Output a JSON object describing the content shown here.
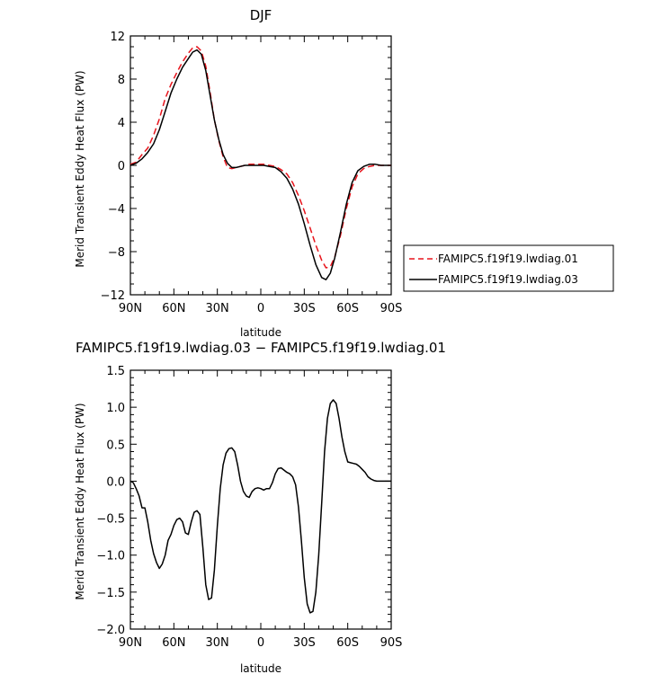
{
  "chart_data": [
    {
      "type": "line",
      "title": "DJF",
      "xlabel": "latitude",
      "ylabel": "Merid Transient Eddy Heat Flux (PW)",
      "xlim": [
        90,
        -90
      ],
      "ylim": [
        -12,
        12
      ],
      "xticks": [
        90,
        60,
        30,
        0,
        -30,
        -60,
        -90
      ],
      "xtick_labels": [
        "90N",
        "60N",
        "30N",
        "0",
        "30S",
        "60S",
        "90S"
      ],
      "yticks": [
        12,
        8,
        4,
        0,
        -4,
        -8,
        -12
      ],
      "ytick_labels": [
        "12",
        "8",
        "4",
        "0",
        "−4",
        "−8",
        "−12"
      ],
      "legend": "right",
      "series": [
        {
          "name": "FAMIPC5.f19f19.lwdiag.01",
          "color": "#e8141c",
          "dash": "dashed",
          "x": [
            90,
            86,
            82,
            78,
            74,
            70,
            66,
            62,
            58,
            54,
            50,
            47,
            44,
            41,
            38,
            35,
            32,
            29,
            26,
            23,
            20,
            17,
            14,
            11,
            8,
            5,
            2,
            -2,
            -6,
            -10,
            -14,
            -18,
            -22,
            -26,
            -30,
            -34,
            -38,
            -42,
            -45,
            -48,
            -51,
            -55,
            -59,
            -63,
            -67,
            -71,
            -75,
            -79,
            -83,
            -87,
            -90
          ],
          "y": [
            0.1,
            0.3,
            1.0,
            1.6,
            2.8,
            4.3,
            6.2,
            7.5,
            8.6,
            9.6,
            10.4,
            10.9,
            11.0,
            10.6,
            9.2,
            6.8,
            4.2,
            2.3,
            0.8,
            -0.2,
            -0.3,
            -0.2,
            -0.1,
            0.0,
            0.1,
            0.1,
            0.1,
            0.1,
            0.0,
            -0.1,
            -0.4,
            -0.8,
            -1.6,
            -2.8,
            -4.2,
            -5.8,
            -7.4,
            -8.8,
            -9.5,
            -9.4,
            -8.5,
            -6.5,
            -4.0,
            -2.0,
            -0.8,
            -0.3,
            -0.1,
            0.0,
            0.0,
            0.0,
            0.0
          ]
        },
        {
          "name": "FAMIPC5.f19f19.lwdiag.03",
          "color": "#000000",
          "dash": "solid",
          "x": [
            90,
            86,
            82,
            78,
            74,
            70,
            66,
            62,
            58,
            54,
            50,
            47,
            44,
            41,
            38,
            35,
            32,
            29,
            26,
            23,
            20,
            17,
            14,
            11,
            8,
            5,
            2,
            -2,
            -6,
            -10,
            -14,
            -18,
            -22,
            -26,
            -30,
            -34,
            -38,
            -42,
            -45,
            -48,
            -51,
            -55,
            -59,
            -63,
            -67,
            -71,
            -75,
            -79,
            -83,
            -87,
            -90
          ],
          "y": [
            0.0,
            0.2,
            0.6,
            1.2,
            2.0,
            3.3,
            5.0,
            6.7,
            8.0,
            9.1,
            9.9,
            10.5,
            10.7,
            10.3,
            8.8,
            6.5,
            4.2,
            2.4,
            1.0,
            0.2,
            -0.2,
            -0.2,
            -0.1,
            0.0,
            0.0,
            0.0,
            0.0,
            0.0,
            -0.1,
            -0.2,
            -0.6,
            -1.2,
            -2.2,
            -3.6,
            -5.4,
            -7.4,
            -9.2,
            -10.4,
            -10.6,
            -10.0,
            -8.6,
            -6.2,
            -3.6,
            -1.6,
            -0.5,
            -0.1,
            0.1,
            0.1,
            0.0,
            0.0,
            0.0
          ]
        }
      ]
    },
    {
      "type": "line",
      "title": "FAMIPC5.f19f19.lwdiag.03 − FAMIPC5.f19f19.lwdiag.01",
      "xlabel": "latitude",
      "ylabel": "Merid Transient Eddy Heat Flux (PW)",
      "xlim": [
        90,
        -90
      ],
      "ylim": [
        -2.0,
        1.5
      ],
      "xticks": [
        90,
        60,
        30,
        0,
        -30,
        -60,
        -90
      ],
      "xtick_labels": [
        "90N",
        "60N",
        "30N",
        "0",
        "30S",
        "60S",
        "90S"
      ],
      "yticks": [
        1.5,
        1.0,
        0.5,
        0.0,
        -0.5,
        -1.0,
        -1.5,
        -2.0
      ],
      "ytick_labels": [
        "1.5",
        "1.0",
        "0.5",
        "0.0",
        "−0.5",
        "−1.0",
        "−1.5",
        "−2.0"
      ],
      "series": [
        {
          "color": "#000000",
          "dash": "solid",
          "x": [
            90,
            88,
            86,
            84,
            82,
            80,
            78,
            76,
            74,
            72,
            70,
            68,
            66,
            64,
            62,
            60,
            58,
            56,
            54,
            52,
            50,
            48,
            46,
            44,
            42,
            40,
            38,
            36,
            34,
            32,
            30,
            28,
            26,
            24,
            22,
            20,
            18,
            16,
            14,
            12,
            10,
            8,
            6,
            4,
            2,
            0,
            -2,
            -4,
            -6,
            -8,
            -10,
            -12,
            -14,
            -16,
            -18,
            -20,
            -22,
            -24,
            -26,
            -28,
            -30,
            -32,
            -34,
            -36,
            -38,
            -40,
            -42,
            -44,
            -46,
            -48,
            -50,
            -52,
            -54,
            -56,
            -58,
            -60,
            -62,
            -64,
            -66,
            -68,
            -70,
            -72,
            -74,
            -76,
            -78,
            -80,
            -82,
            -84,
            -86,
            -88,
            -90
          ],
          "y": [
            0.0,
            -0.02,
            -0.1,
            -0.2,
            -0.36,
            -0.36,
            -0.55,
            -0.8,
            -0.98,
            -1.1,
            -1.18,
            -1.12,
            -1.0,
            -0.8,
            -0.72,
            -0.6,
            -0.52,
            -0.5,
            -0.55,
            -0.7,
            -0.72,
            -0.55,
            -0.42,
            -0.4,
            -0.45,
            -0.9,
            -1.4,
            -1.6,
            -1.58,
            -1.2,
            -0.6,
            -0.1,
            0.22,
            0.38,
            0.44,
            0.45,
            0.4,
            0.22,
            0.0,
            -0.14,
            -0.2,
            -0.22,
            -0.14,
            -0.1,
            -0.09,
            -0.1,
            -0.12,
            -0.1,
            -0.1,
            -0.02,
            0.1,
            0.17,
            0.18,
            0.15,
            0.12,
            0.1,
            0.06,
            -0.05,
            -0.35,
            -0.8,
            -1.3,
            -1.66,
            -1.78,
            -1.76,
            -1.5,
            -1.0,
            -0.3,
            0.4,
            0.85,
            1.05,
            1.1,
            1.05,
            0.85,
            0.6,
            0.4,
            0.26,
            0.25,
            0.24,
            0.23,
            0.2,
            0.16,
            0.12,
            0.06,
            0.03,
            0.01,
            0.0,
            0.0,
            0.0,
            0.0,
            0.0,
            0.0
          ]
        }
      ]
    }
  ]
}
